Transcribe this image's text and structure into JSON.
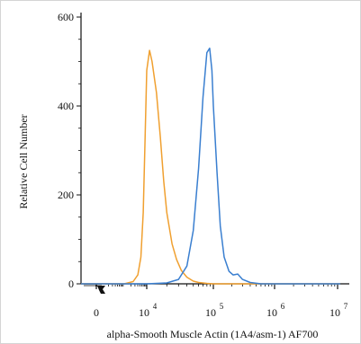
{
  "chart_data": {
    "type": "line",
    "title": "",
    "xlabel": "alpha-Smooth Muscle Actin (1A4/asm-1) AF700",
    "ylabel": "Relative Cell Number",
    "x_scale": "biexponential (log above 10^2)",
    "xlim": [
      -200,
      10000000
    ],
    "ylim": [
      0,
      600
    ],
    "x_ticks": [
      {
        "value": 0,
        "base": "0",
        "exp": ""
      },
      {
        "value": 10000,
        "base": "10",
        "exp": "4"
      },
      {
        "value": 100000,
        "base": "10",
        "exp": "5"
      },
      {
        "value": 1000000,
        "base": "10",
        "exp": "6"
      },
      {
        "value": 10000000,
        "base": "10",
        "exp": "7"
      }
    ],
    "y_ticks": [
      "0",
      "200",
      "400",
      "600"
    ],
    "grid": false,
    "legend": "none",
    "series": [
      {
        "color": "#f0a030",
        "x": [
          1000,
          2500,
          4000,
          5500,
          7000,
          8500,
          10000,
          11000,
          12000,
          14000,
          16000,
          18000,
          20000,
          24000,
          28000,
          33000,
          40000,
          50000,
          60000,
          80000,
          100000,
          150000
        ],
        "y": [
          0,
          5,
          20,
          60,
          160,
          330,
          480,
          525,
          500,
          430,
          330,
          230,
          160,
          90,
          55,
          30,
          15,
          6,
          3,
          1,
          0,
          0
        ]
      },
      {
        "color": "#3a7fd0",
        "x": [
          10000,
          20000,
          30000,
          40000,
          50000,
          60000,
          70000,
          80000,
          88000,
          95000,
          100000,
          115000,
          130000,
          150000,
          180000,
          210000,
          250000,
          300000,
          400000,
          600000,
          1000000
        ],
        "y": [
          0,
          2,
          10,
          40,
          120,
          260,
          420,
          520,
          530,
          480,
          400,
          250,
          130,
          60,
          28,
          20,
          22,
          10,
          3,
          0,
          0
        ]
      }
    ]
  }
}
